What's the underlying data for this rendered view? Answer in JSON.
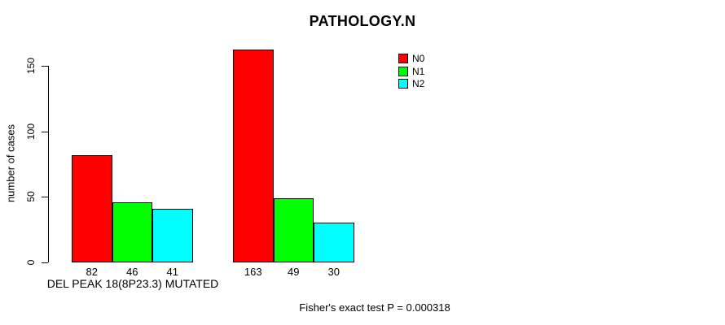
{
  "chart_data": {
    "type": "bar",
    "title": "PATHOLOGY.N",
    "ylabel": "number of cases",
    "xlabel": "DEL PEAK 18(8P23.3) MUTATED",
    "annotation": "Fisher's exact test P = 0.000318",
    "categories": [
      "DEL PEAK 18(8P23.3) MUTATED",
      ""
    ],
    "series": [
      {
        "name": "N0",
        "color": "#FF0000",
        "values": [
          82,
          163
        ]
      },
      {
        "name": "N1",
        "color": "#00FF00",
        "values": [
          46,
          49
        ]
      },
      {
        "name": "N2",
        "color": "#00FFFF",
        "values": [
          41,
          30
        ]
      }
    ],
    "bar_value_labels": [
      [
        82,
        46,
        41
      ],
      [
        163,
        49,
        30
      ]
    ],
    "yticks": [
      0,
      50,
      100,
      150
    ],
    "ylim": [
      0,
      150
    ],
    "legend_position": "top-right",
    "grid": false,
    "colors": {
      "bar_border": "#000000",
      "axis": "#000000",
      "text": "#000000",
      "background": "#FFFFFF"
    }
  }
}
